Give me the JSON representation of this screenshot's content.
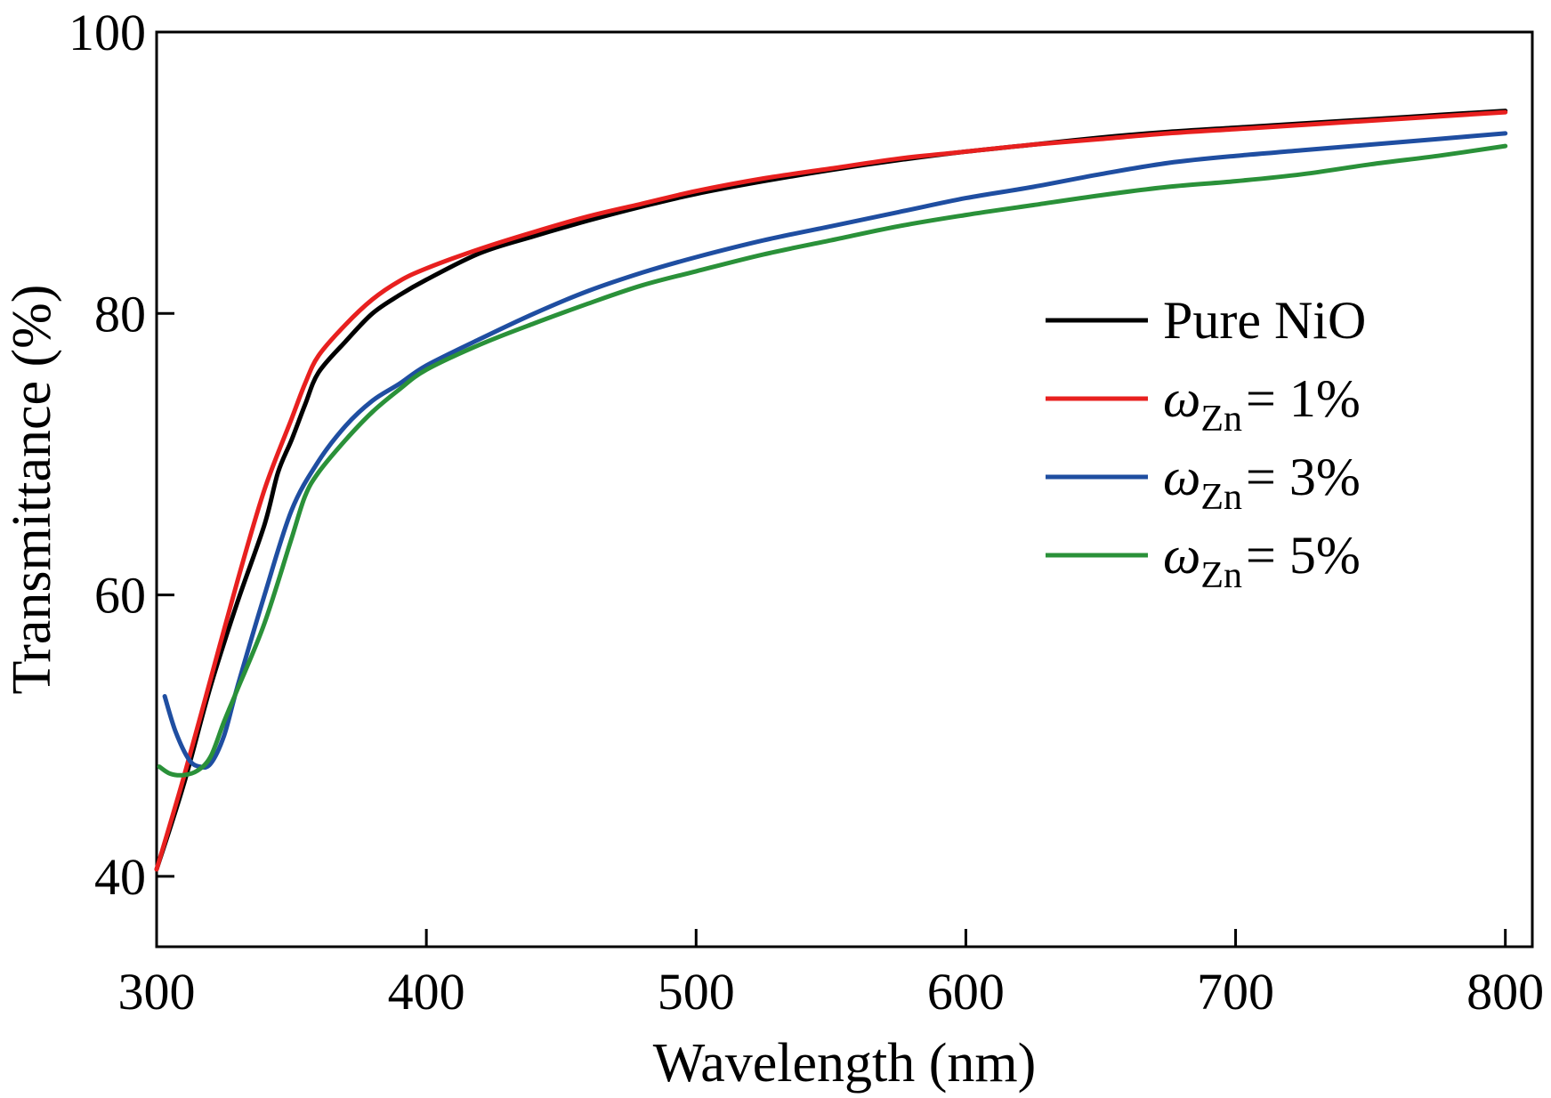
{
  "chart_data": {
    "type": "line",
    "title": "",
    "xlabel": "Wavelength (nm)",
    "ylabel": "Transmittance (%)",
    "xlim": [
      300,
      810
    ],
    "ylim": [
      35,
      100
    ],
    "xticks": [
      300,
      400,
      500,
      600,
      700,
      800
    ],
    "yticks": [
      40,
      60,
      80,
      100
    ],
    "xtick_labels": [
      "300",
      "400",
      "500",
      "600",
      "700",
      "800"
    ],
    "ytick_labels": [
      "40",
      "60",
      "80",
      "100"
    ],
    "grid": false,
    "legend_position": "right",
    "series": [
      {
        "name": "Pure NiO",
        "legend_main": "Pure NiO",
        "legend_sub": "",
        "legend_tail": "",
        "color": "#000000",
        "x": [
          300,
          310,
          320,
          330,
          340,
          345,
          350,
          355,
          360,
          370,
          380,
          390,
          400,
          420,
          440,
          460,
          480,
          500,
          525,
          550,
          575,
          600,
          625,
          650,
          675,
          700,
          725,
          750,
          775,
          800
        ],
        "y": [
          40.5,
          46.5,
          53.5,
          59.5,
          65,
          68.7,
          71,
          73.5,
          75.8,
          78,
          80,
          81.3,
          82.4,
          84.3,
          85.5,
          86.6,
          87.6,
          88.5,
          89.4,
          90.2,
          90.9,
          91.5,
          92,
          92.5,
          92.9,
          93.2,
          93.5,
          93.8,
          94.1,
          94.4
        ]
      },
      {
        "name": "ωZn = 1%",
        "legend_main": "ω",
        "legend_sub": "Zn",
        "legend_tail": "= 1%",
        "color": "#e8201f",
        "x": [
          300,
          310,
          320,
          330,
          340,
          350,
          355,
          360,
          370,
          380,
          390,
          400,
          420,
          440,
          460,
          480,
          500,
          525,
          550,
          575,
          600,
          625,
          650,
          675,
          700,
          725,
          750,
          775,
          800
        ],
        "y": [
          40.5,
          47,
          54,
          61,
          67.5,
          72.5,
          75,
          77,
          79.2,
          81,
          82.3,
          83.2,
          84.6,
          85.8,
          86.9,
          87.8,
          88.7,
          89.6,
          90.3,
          91,
          91.5,
          92,
          92.4,
          92.8,
          93.1,
          93.4,
          93.7,
          94,
          94.3
        ]
      },
      {
        "name": "ωZn = 3%",
        "legend_main": "ω",
        "legend_sub": "Zn",
        "legend_tail": "= 3%",
        "color": "#1f4ea1",
        "x": [
          303,
          307,
          312,
          316,
          320,
          325,
          330,
          340,
          350,
          360,
          370,
          380,
          390,
          400,
          420,
          440,
          460,
          480,
          500,
          525,
          550,
          575,
          600,
          625,
          650,
          675,
          700,
          725,
          750,
          775,
          800
        ],
        "y": [
          52.8,
          50.3,
          48.3,
          47.8,
          48,
          50,
          53.5,
          60,
          66,
          69.5,
          72,
          73.8,
          75,
          76.3,
          78.2,
          80,
          81.6,
          82.9,
          84,
          85.2,
          86.2,
          87.2,
          88.2,
          89,
          89.9,
          90.7,
          91.2,
          91.6,
          92,
          92.4,
          92.8
        ]
      },
      {
        "name": "ωZn = 5%",
        "legend_main": "ω",
        "legend_sub": "Zn",
        "legend_tail": "= 5%",
        "color": "#2a9139",
        "x": [
          301,
          305,
          310,
          315,
          320,
          325,
          330,
          340,
          350,
          355,
          360,
          370,
          380,
          390,
          400,
          420,
          440,
          460,
          480,
          500,
          525,
          550,
          575,
          600,
          625,
          650,
          675,
          700,
          725,
          750,
          775,
          800
        ],
        "y": [
          47.8,
          47.3,
          47.2,
          47.5,
          48.5,
          51,
          53.3,
          58,
          64,
          67,
          68.7,
          71,
          73,
          74.6,
          76,
          77.8,
          79.3,
          80.7,
          82,
          83,
          84.2,
          85.2,
          86.2,
          87,
          87.7,
          88.4,
          89,
          89.4,
          89.9,
          90.6,
          91.2,
          91.9
        ]
      }
    ]
  }
}
